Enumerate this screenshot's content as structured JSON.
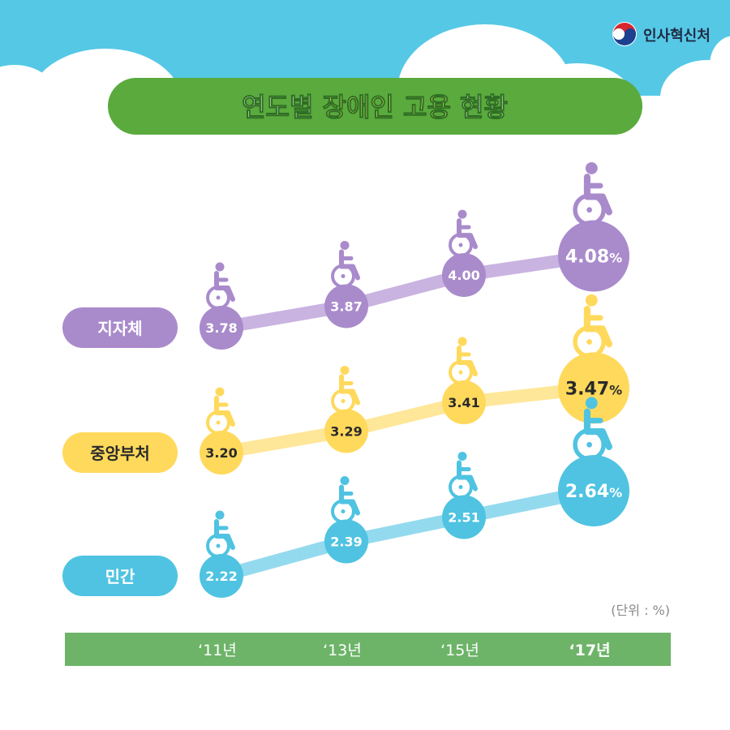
{
  "logo": {
    "text": "인사혁신처"
  },
  "title": {
    "part1": "연도별 ",
    "part2": "장애인 고용",
    "part3": " 현황"
  },
  "unit_label": "(단위 : %)",
  "colors": {
    "sky": "#55c8e6",
    "green": "#5aaa3e",
    "title_yellow": "#fff07a",
    "purple": "#a98bcc",
    "purple_line": "#c9b3e0",
    "yellow": "#ffd95c",
    "yellow_line": "#ffe79a",
    "blue": "#4fc3e1",
    "blue_line": "#94daee",
    "axis_bar": "#6db468"
  },
  "chart_data": {
    "type": "line",
    "categories": [
      "‘11년",
      "‘13년",
      "‘15년",
      "‘17년"
    ],
    "series": [
      {
        "name": "지자체",
        "values": [
          3.78,
          3.87,
          4.0,
          4.08
        ],
        "labels": [
          "3.78",
          "3.87",
          "4.00",
          "4.08"
        ],
        "color": "#a98bcc"
      },
      {
        "name": "중앙부처",
        "values": [
          3.2,
          3.29,
          3.41,
          3.47
        ],
        "labels": [
          "3.20",
          "3.29",
          "3.41",
          "3.47"
        ],
        "color": "#ffd95c"
      },
      {
        "name": "민간",
        "values": [
          2.22,
          2.39,
          2.51,
          2.64
        ],
        "labels": [
          "2.22",
          "2.39",
          "2.51",
          "2.64"
        ],
        "color": "#4fc3e1"
      }
    ],
    "last_value_suffix": "%",
    "title": "연도별 장애인 고용 현황",
    "ylabel": "(단위 : %)",
    "highlight_category": "‘17년",
    "icon": "wheelchair-icon"
  }
}
